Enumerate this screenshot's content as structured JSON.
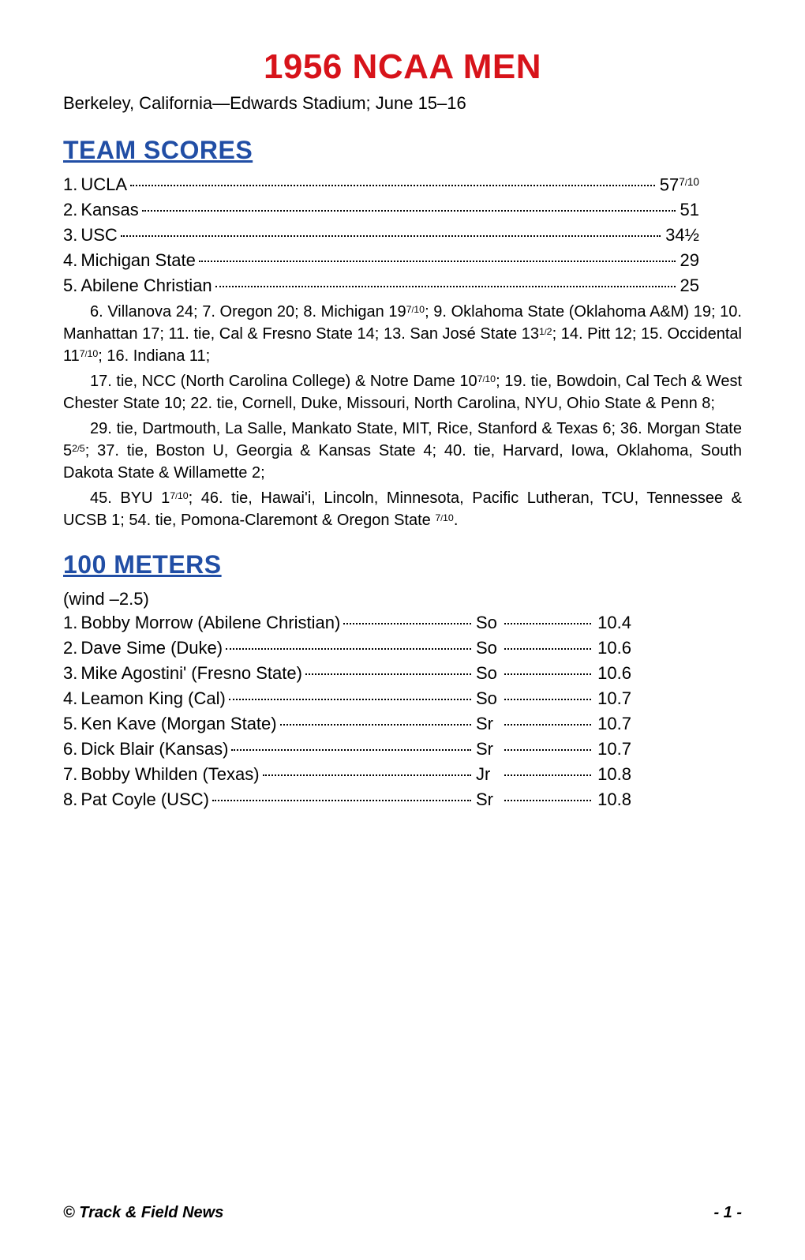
{
  "title": "1956 NCAA MEN",
  "subtitle": "Berkeley, California—Edwards Stadium; June 15–16",
  "sections": {
    "team_scores": {
      "header": "TEAM SCORES",
      "top5": [
        {
          "rank": "1.",
          "team": "UCLA",
          "score": "57",
          "frac_num": "7",
          "frac_den": "10"
        },
        {
          "rank": "2.",
          "team": "Kansas",
          "score": "51"
        },
        {
          "rank": "3.",
          "team": "USC",
          "score": "34½"
        },
        {
          "rank": "4.",
          "team": "Michigan State",
          "score": "29"
        },
        {
          "rank": "5.",
          "team": "Abilene Christian",
          "score": "25"
        }
      ],
      "para1_a": "6. Villanova 24; 7. Oregon 20; 8. Michigan 19",
      "para1_b": "; 9. Oklahoma State (Oklahoma A&M) 19; 10. Manhattan 17; 11. tie, Cal & Fresno State 14; 13. San José State 13",
      "para1_c": "; 14. Pitt 12; 15. Occidental 11",
      "para1_d": "; 16. Indiana 11;",
      "frac_7_10_num": "7",
      "frac_7_10_den": "10",
      "frac_1_2_num": "1",
      "frac_1_2_den": "2",
      "para2_a": "17. tie, NCC (North Carolina College) & Notre Dame 10",
      "para2_b": "; 19. tie, Bowdoin, Cal Tech & West Chester State 10; 22. tie, Cornell, Duke, Missouri, North Carolina, NYU, Ohio State & Penn 8;",
      "para3_a": "29. tie, Dartmouth, La Salle, Mankato State, MIT, Rice, Stanford & Texas 6; 36. Morgan State 5",
      "para3_b": "; 37. tie, Boston U, Georgia & Kansas State 4; 40. tie, Harvard, Iowa, Oklahoma, South Dakota State & Willamette 2;",
      "frac_2_5_num": "2",
      "frac_2_5_den": "5",
      "para4_a": "45. BYU 1",
      "para4_b": "; 46. tie, Hawai'i, Lincoln, Minnesota, Pacific Lutheran, TCU, Tennessee & UCSB 1; 54. tie, Pomona-Claremont & Oregon State ",
      "para4_c": "."
    },
    "event_100m": {
      "header": "100 METERS",
      "wind": "(wind –2.5)",
      "results": [
        {
          "rank": "1.",
          "name": "Bobby Morrow (Abilene Christian)",
          "class": "So",
          "time": "10.4"
        },
        {
          "rank": "2.",
          "name": "Dave Sime (Duke)",
          "class": "So",
          "time": "10.6"
        },
        {
          "rank": "3.",
          "name": "Mike Agostini' (Fresno State)",
          "class": "So",
          "time": "10.6"
        },
        {
          "rank": "4.",
          "name": "Leamon King (Cal)",
          "class": "So",
          "time": "10.7"
        },
        {
          "rank": "5.",
          "name": "Ken Kave (Morgan State)",
          "class": "Sr",
          "time": "10.7"
        },
        {
          "rank": "6.",
          "name": "Dick Blair (Kansas)",
          "class": "Sr",
          "time": "10.7"
        },
        {
          "rank": "7.",
          "name": "Bobby Whilden (Texas)",
          "class": "Jr",
          "time": "10.8"
        },
        {
          "rank": "8.",
          "name": "Pat Coyle (USC)",
          "class": "Sr",
          "time": "10.8"
        }
      ]
    }
  },
  "footer": {
    "left": "© Track & Field News",
    "right": "- 1 -"
  },
  "colors": {
    "title": "#d7131a",
    "section_header": "#214ea5",
    "text": "#000000",
    "background": "#ffffff"
  }
}
